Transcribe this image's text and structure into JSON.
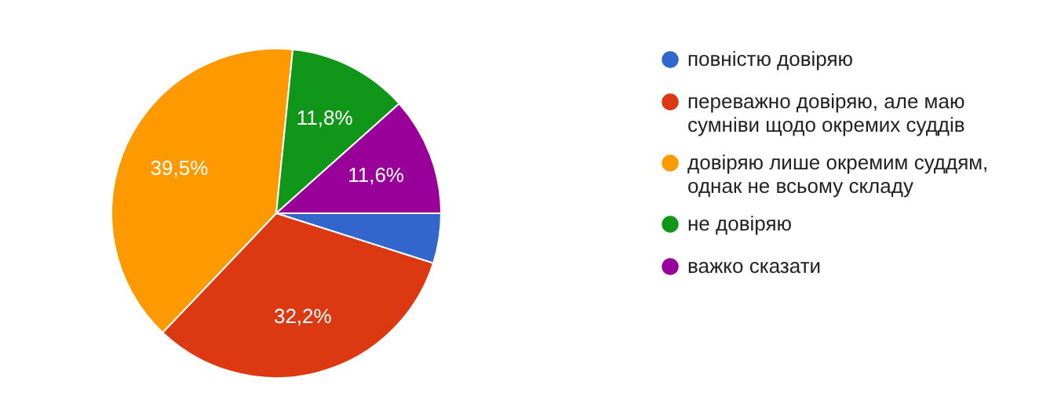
{
  "chart_data": {
    "type": "pie",
    "categories": [
      "повністю довіряю",
      "переважно довіряю, але маю сумніви щодо окремих суддів",
      "довіряю лише окремим суддям, однак не всьому складу",
      "не довіряю",
      "важко сказати"
    ],
    "values": [
      4.9,
      32.2,
      39.5,
      11.8,
      11.6
    ],
    "colors": [
      "#3366cc",
      "#dc3912",
      "#ff9900",
      "#109618",
      "#990099"
    ],
    "value_labels": [
      null,
      "32,2%",
      "39,5%",
      "11,8%",
      "11,6%"
    ],
    "legend": "right"
  }
}
